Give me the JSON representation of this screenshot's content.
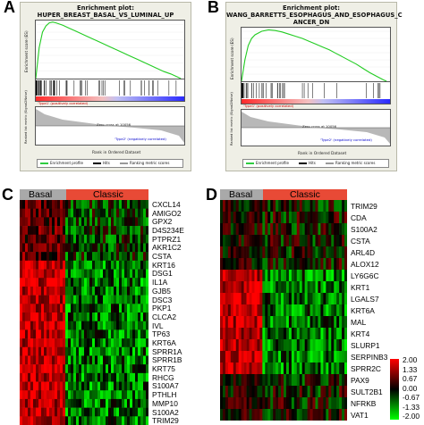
{
  "panels": {
    "A": {
      "letter": "A",
      "title_line1": "Enrichment plot:",
      "title_line2": "HUPER_BREAST_BASAL_VS_LUMINAL_UP"
    },
    "B": {
      "letter": "B",
      "title_line1": "Enrichment plot:",
      "title_line2": "WANG_BARRETTS_ESOPHAGUS_AND_ESOPHAGUS_C",
      "title_line3": "ANCER_DN"
    },
    "C": {
      "letter": "C"
    },
    "D": {
      "letter": "D"
    }
  },
  "gsea_common": {
    "ylabel_es": "Enrichment score (ES)",
    "ylabel_rank": "Ranked list metric (Signal2Noise)",
    "xlabel": "Rank in Ordered Dataset",
    "pos_label": "'Type1' (positively correlated)",
    "neg_label": "'Type2' (negatively correlated)",
    "zero_cross": "Zero cross at 10056",
    "legend_profile": "Enrichment profile",
    "legend_hits": "Hits",
    "legend_ranking": "Ranking metric scores",
    "xticks": [
      "0",
      "2,500",
      "5,000",
      "7,500",
      "10,000",
      "12,500",
      "15,000",
      "17,500",
      "20,000"
    ],
    "es_ticks_A": [
      "0.7",
      "0.6",
      "0.5",
      "0.4",
      "0.3",
      "0.2",
      "0.1",
      "0.0"
    ],
    "es_ticks_B": [
      "0.7",
      "0.6",
      "0.5",
      "0.4",
      "0.3",
      "0.2",
      "0.1",
      "0.0"
    ],
    "rank_ticks": [
      "1.0",
      "0.5",
      "0.0",
      "-0.5",
      "-1.0"
    ]
  },
  "chart_data": [
    {
      "type": "line",
      "panel": "A",
      "title": "Enrichment plot: HUPER_BREAST_BASAL_VS_LUMINAL_UP",
      "xlabel": "Rank in Ordered Dataset",
      "ylabel": "Enrichment score (ES)",
      "xlim": [
        0,
        22000
      ],
      "ylim": [
        0,
        0.75
      ],
      "x": [
        0,
        500,
        1000,
        1500,
        2000,
        2500,
        3000,
        4000,
        5000,
        6000,
        7000,
        8000,
        9000,
        10000,
        11000,
        12000,
        13000,
        14000,
        15000,
        16000,
        17000,
        18000,
        19000,
        20000,
        21000,
        21500
      ],
      "y": [
        0.0,
        0.4,
        0.6,
        0.68,
        0.72,
        0.73,
        0.72,
        0.69,
        0.65,
        0.61,
        0.57,
        0.53,
        0.49,
        0.45,
        0.41,
        0.37,
        0.33,
        0.29,
        0.25,
        0.21,
        0.17,
        0.13,
        0.09,
        0.06,
        0.02,
        0.0
      ]
    },
    {
      "type": "line",
      "panel": "B",
      "title": "Enrichment plot: WANG_BARRETTS_ESOPHAGUS_AND_ESOPHAGUS_CANCER_DN",
      "xlabel": "Rank in Ordered Dataset",
      "ylabel": "Enrichment score (ES)",
      "xlim": [
        0,
        22000
      ],
      "ylim": [
        0,
        0.75
      ],
      "x": [
        0,
        500,
        1000,
        1500,
        2000,
        3000,
        4000,
        5000,
        6000,
        7000,
        8000,
        9000,
        10000,
        11000,
        12000,
        13000,
        14000,
        15000,
        16000,
        17000,
        18000,
        19000,
        20000,
        21000,
        21500
      ],
      "y": [
        0.0,
        0.3,
        0.5,
        0.6,
        0.65,
        0.7,
        0.72,
        0.71,
        0.69,
        0.66,
        0.63,
        0.6,
        0.56,
        0.52,
        0.48,
        0.44,
        0.39,
        0.34,
        0.29,
        0.24,
        0.18,
        0.12,
        0.07,
        0.02,
        0.0
      ]
    },
    {
      "type": "heatmap",
      "panel": "C",
      "groups": [
        {
          "name": "Basal",
          "color": "#a9a9a9",
          "fraction": 0.36
        },
        {
          "name": "Classic",
          "color": "#e84a36",
          "fraction": 0.64
        }
      ],
      "rows": [
        "CXCL14",
        "AMIGO2",
        "GPX2",
        "D4S234E",
        "PTPRZ1",
        "AKR1C2",
        "CSTA",
        "KRT16",
        "DSG1",
        "IL1A",
        "GJB5",
        "DSC3",
        "PKP1",
        "CLCA2",
        "IVL",
        "TP63",
        "KRT6A",
        "SPRR1A",
        "SPRR1B",
        "KRT75",
        "RHCG",
        "S100A7",
        "PTHLH",
        "MMP10",
        "S100A2",
        "TRIM29"
      ]
    },
    {
      "type": "heatmap",
      "panel": "D",
      "groups": [
        {
          "name": "Basal",
          "color": "#a9a9a9",
          "fraction": 0.33
        },
        {
          "name": "Classic",
          "color": "#e84a36",
          "fraction": 0.67
        }
      ],
      "rows": [
        "TRIM29",
        "CDA",
        "S100A2",
        "CSTA",
        "ARL4D",
        "ALOX12",
        "LY6G6C",
        "KRT1",
        "LGALS7",
        "KRT6A",
        "MAL",
        "KRT4",
        "SLURP1",
        "SERPINB3",
        "SPRR2C",
        "PAX9",
        "SULT2B1",
        "NFRKB",
        "VAT1"
      ]
    }
  ],
  "heat_scale": {
    "labels": [
      "2.00",
      "1.33",
      "0.67",
      "0.00",
      "-0.67",
      "-1.33",
      "-2.00"
    ],
    "colors": {
      "high": "#ff0000",
      "mid": "#000000",
      "low": "#00ff00"
    }
  }
}
